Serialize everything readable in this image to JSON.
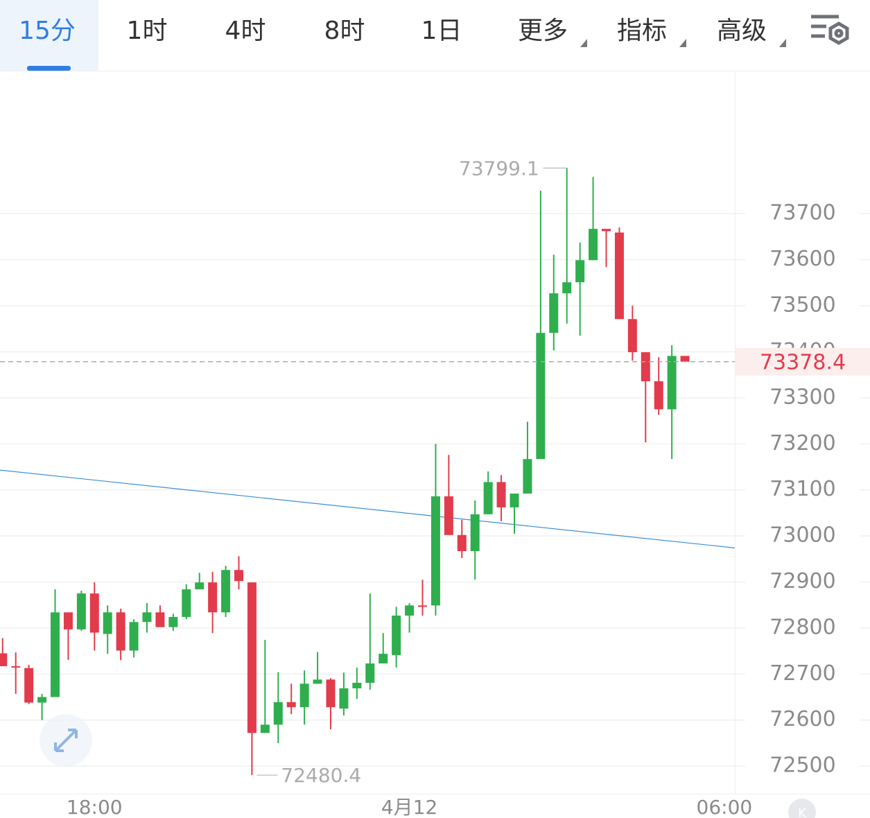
{
  "tabs": [
    "15分",
    "1时",
    "4时",
    "8时",
    "1日",
    "更多",
    "指标",
    "高级"
  ],
  "chart_data": {
    "type": "candlestick",
    "up_color": "#2fae4e",
    "down_color": "#e23b4b",
    "open": [
      72745,
      72717,
      72713,
      72638,
      72650,
      72834,
      72797,
      72875,
      72787,
      72834,
      72751,
      72813,
      72834,
      72802,
      72824,
      72884,
      72899,
      72834,
      72926,
      72899,
      72572,
      72590,
      72639,
      72628,
      72679,
      72688,
      72625,
      72669,
      72681,
      72723,
      72741,
      72827,
      72849,
      72849,
      73086,
      73002,
      72967,
      73047,
      73117,
      73062,
      73092,
      73167,
      73441,
      73527,
      73551,
      73599,
      73667,
      73659,
      73471,
      73399,
      73336,
      73275,
      73391
    ],
    "high": [
      72778,
      72747,
      72720,
      72657,
      72884,
      72834,
      72881,
      72899,
      72849,
      72842,
      72819,
      72854,
      72849,
      72831,
      72895,
      72920,
      72922,
      72935,
      72956,
      72899,
      72774,
      72704,
      72679,
      72708,
      72748,
      72691,
      72703,
      72714,
      72875,
      72789,
      72846,
      72854,
      72905,
      73200,
      73176,
      73035,
      73077,
      73140,
      73132,
      73092,
      73248,
      73750,
      73611,
      73799.1,
      73637,
      73780,
      73667,
      73670,
      73500,
      73399,
      73388,
      73414,
      73391
    ],
    "low": [
      72717,
      72657,
      72635,
      72600,
      72650,
      72731,
      72794,
      72751,
      72744,
      72730,
      72736,
      72790,
      72802,
      72794,
      72819,
      72884,
      72789,
      72824,
      72884,
      72480.4,
      72572,
      72550,
      72613,
      72590,
      72679,
      72580,
      72610,
      72646,
      72666,
      72723,
      72714,
      72790,
      72827,
      72827,
      73002,
      72952,
      72905,
      73047,
      73032,
      73005,
      73092,
      73167,
      73403,
      73461,
      73435,
      73599,
      73584,
      73471,
      73381,
      73203,
      73263,
      73167,
      73378.4
    ],
    "close": [
      72717,
      72714,
      72638,
      72650,
      72834,
      72797,
      72875,
      72790,
      72834,
      72751,
      72813,
      72834,
      72802,
      72824,
      72884,
      72899,
      72834,
      72926,
      72902,
      72572,
      72590,
      72639,
      72628,
      72679,
      72688,
      72628,
      72669,
      72681,
      72723,
      72744,
      72827,
      72849,
      72846,
      73086,
      73002,
      72967,
      73047,
      73117,
      73062,
      73092,
      73167,
      73441,
      73527,
      73551,
      73599,
      73667,
      73662,
      73471,
      73399,
      73336,
      73275,
      73391,
      73378.4
    ],
    "ylim": [
      72440,
      74009
    ],
    "yticks": [
      72500,
      72600,
      72700,
      72800,
      72900,
      73000,
      73100,
      73200,
      73300,
      73400,
      73500,
      73600,
      73700
    ],
    "xlim": [
      -0.2,
      55.8
    ],
    "xticks": [
      {
        "value": 7,
        "label": "18:00"
      },
      {
        "value": 31,
        "label": "4月12"
      },
      {
        "value": 55,
        "label": "06:00"
      }
    ],
    "trend_line": {
      "color": "#3a8fd6",
      "values": [
        73143,
        72974
      ]
    },
    "grid": true
  }
}
